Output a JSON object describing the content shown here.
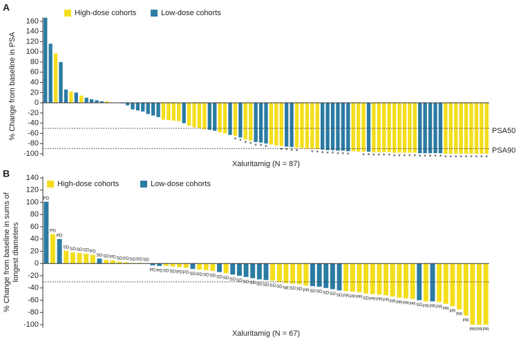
{
  "chart_data": [
    {
      "type": "bar",
      "panel_label": "A",
      "ylabel": [
        "% Change from baseline in PSA"
      ],
      "xlabel": "Xaluritamig (N = 87)",
      "ylim": [
        -105,
        168
      ],
      "yticks": [
        160,
        140,
        120,
        100,
        80,
        60,
        40,
        20,
        0,
        -20,
        -40,
        -60,
        -80,
        -100
      ],
      "ref_lines": [
        {
          "value": -50,
          "label": "PSA50"
        },
        {
          "value": -90,
          "label": "PSA90"
        }
      ],
      "series": [
        {
          "name": "High-dose cohorts",
          "color": "#f4de1c",
          "values": [
            null,
            null,
            97,
            null,
            null,
            22,
            null,
            14,
            null,
            null,
            null,
            null,
            3,
            1,
            null,
            null,
            null,
            null,
            null,
            null,
            null,
            null,
            null,
            -33,
            -34,
            -35,
            -36,
            null,
            -45,
            -48,
            -50,
            -52,
            null,
            null,
            -58,
            -60,
            null,
            -65,
            null,
            -72,
            -74,
            null,
            null,
            null,
            -82,
            -84,
            -85,
            null,
            null,
            -88,
            -89,
            -90,
            -90,
            -91,
            null,
            null,
            null,
            null,
            null,
            null,
            -95,
            -96,
            -96,
            null,
            -97,
            -97,
            -97,
            -97,
            -98,
            -98,
            -98,
            -98,
            -98,
            null,
            null,
            null,
            null,
            null,
            -100,
            -100,
            -100,
            -100,
            -100,
            -100,
            -100,
            -100,
            -100
          ]
        },
        {
          "name": "Low-dose cohorts",
          "color": "#2b7ba3",
          "values": [
            167,
            116,
            null,
            80,
            26,
            null,
            20,
            null,
            10,
            7,
            5,
            3,
            null,
            null,
            0,
            -1,
            -5,
            -13,
            -15,
            -17,
            -22,
            -25,
            -28,
            null,
            null,
            null,
            null,
            -40,
            null,
            null,
            null,
            null,
            -53,
            -55,
            null,
            null,
            -63,
            null,
            -68,
            null,
            null,
            -77,
            -78,
            -80,
            null,
            null,
            null,
            -86,
            -87,
            null,
            null,
            null,
            null,
            null,
            -92,
            -93,
            -93,
            -94,
            -94,
            -95,
            null,
            null,
            null,
            -96,
            null,
            null,
            null,
            null,
            null,
            null,
            null,
            null,
            null,
            -99,
            -99,
            -99,
            -99,
            -99,
            null,
            null,
            null,
            null,
            null,
            null,
            null,
            null,
            null
          ]
        }
      ],
      "bar_labels": [
        null,
        null,
        null,
        null,
        null,
        null,
        null,
        null,
        null,
        null,
        null,
        null,
        null,
        null,
        null,
        null,
        null,
        null,
        null,
        null,
        null,
        null,
        null,
        null,
        null,
        null,
        null,
        null,
        null,
        null,
        null,
        null,
        null,
        null,
        null,
        null,
        null,
        "*",
        "*",
        "*",
        "*",
        "*",
        "*",
        "*",
        null,
        null,
        "*",
        "*",
        "*",
        "*",
        null,
        null,
        "*",
        "*",
        "*",
        "*",
        "*",
        "*",
        "*",
        "*",
        null,
        null,
        "*",
        "*",
        "*",
        "*",
        "*",
        "*",
        "*",
        "*",
        "*",
        "*",
        "*",
        "*",
        "*",
        "*",
        "*",
        "*",
        "*",
        "*",
        "*",
        "*",
        "*",
        "*",
        "*",
        "*",
        "*"
      ]
    },
    {
      "type": "bar",
      "panel_label": "B",
      "ylabel": [
        "% Change from baseline in sums of",
        "longest diameters"
      ],
      "xlabel": "Xaluritamig (N = 67)",
      "ylim": [
        -105,
        142
      ],
      "yticks": [
        140,
        120,
        100,
        80,
        60,
        40,
        20,
        0,
        -20,
        -40,
        -60,
        -80,
        -100
      ],
      "ref_lines": [
        {
          "value": -30,
          "label": null
        }
      ],
      "series": [
        {
          "name": "High-dose cohorts",
          "color": "#f4de1c",
          "values": [
            null,
            48,
            null,
            21,
            18,
            17,
            16,
            14,
            null,
            6,
            5,
            3,
            2,
            1,
            1,
            0.5,
            null,
            null,
            -4,
            -5,
            -6,
            -7,
            null,
            -10,
            -11,
            -12,
            null,
            -16,
            null,
            null,
            null,
            null,
            null,
            null,
            -28,
            -30,
            -32,
            -33,
            -34,
            -36,
            null,
            null,
            null,
            null,
            null,
            -45,
            -46,
            -47,
            -49,
            -50,
            -51,
            -52,
            -54,
            -56,
            -57,
            -58,
            null,
            -62,
            null,
            -63,
            -66,
            -70,
            -75,
            -85,
            -100,
            -100,
            -100
          ]
        },
        {
          "name": "Low-dose cohorts",
          "color": "#2b7ba3",
          "values": [
            101,
            null,
            40,
            null,
            null,
            null,
            null,
            null,
            8,
            null,
            null,
            null,
            null,
            null,
            null,
            null,
            -3,
            -4,
            null,
            null,
            null,
            null,
            -9,
            null,
            null,
            null,
            -14,
            null,
            -18,
            -20,
            -22,
            -24,
            -26,
            -27,
            null,
            null,
            null,
            null,
            null,
            null,
            -37,
            -38,
            -40,
            -42,
            -44,
            null,
            null,
            null,
            null,
            null,
            null,
            null,
            null,
            null,
            null,
            null,
            -60,
            null,
            -62,
            null,
            null,
            null,
            null,
            null,
            null,
            null,
            null
          ]
        }
      ],
      "bar_labels": [
        "PD",
        "PD",
        "PD",
        "SD",
        "SD",
        "SD",
        "SD",
        "PD",
        "SD",
        "SD",
        "PD",
        "SD",
        "PD",
        "SD",
        "PD",
        "SD",
        "PD",
        "PD",
        "SD",
        "SD",
        "PD",
        "PD",
        "SD",
        "PD",
        "SD",
        "SD",
        "SD",
        "SD",
        "SD",
        "SD",
        "SD",
        "SD",
        "SD",
        "SD",
        "SD",
        "SD",
        "NE",
        "SD",
        "SD",
        "PR",
        "SD",
        "SD",
        "SD",
        "SD",
        "SD",
        "PR",
        "PR",
        "PR",
        "SD",
        "PR",
        "PR",
        "PR",
        "PR",
        "PR",
        "PR",
        "PR",
        "SD",
        "PR",
        "PR",
        "PR",
        "PR",
        "PR",
        "PR",
        "PR",
        "PR",
        "PR",
        "PR"
      ]
    }
  ]
}
